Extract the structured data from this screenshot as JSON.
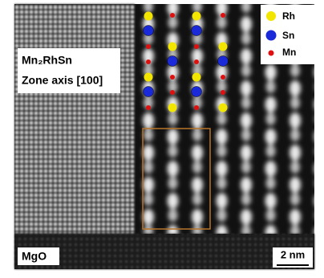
{
  "labels": {
    "compound": "Mn₂RhSn",
    "zone_axis": "Zone axis [100]",
    "substrate": "MgO",
    "scale_bar": "2 nm"
  },
  "legend": [
    {
      "label": "Rh"
    },
    {
      "label": "Sn"
    },
    {
      "label": "Mn"
    }
  ]
}
